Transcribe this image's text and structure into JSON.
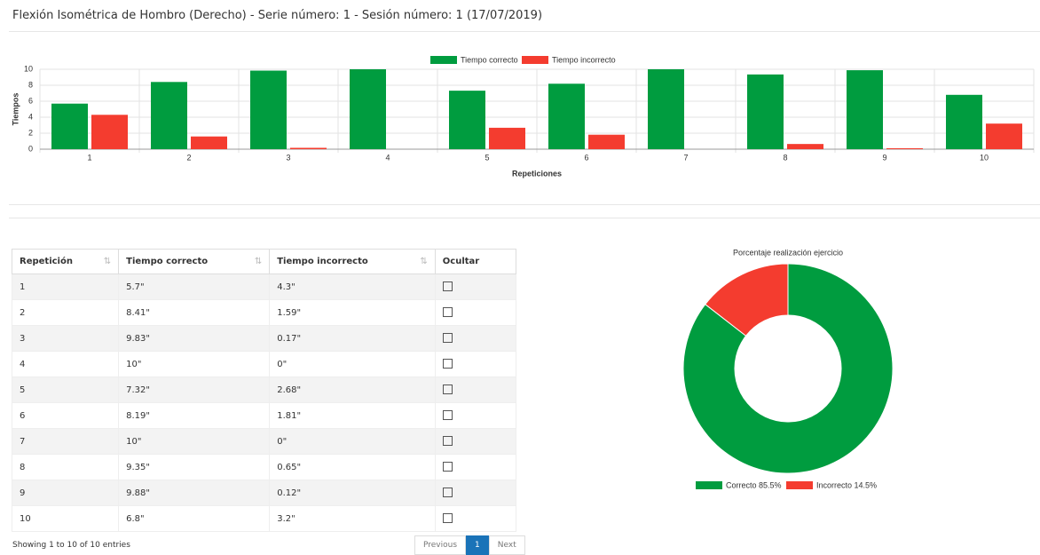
{
  "header": {
    "title": "Flexión Isométrica de Hombro (Derecho) - Serie número: 1 - Sesión número: 1 (17/07/2019)"
  },
  "chart_data": [
    {
      "type": "bar",
      "categories": [
        "1",
        "2",
        "3",
        "4",
        "5",
        "6",
        "7",
        "8",
        "9",
        "10"
      ],
      "series": [
        {
          "name": "Tiempo correcto",
          "color": "#009c3f",
          "values": [
            5.7,
            8.41,
            9.83,
            10,
            7.32,
            8.19,
            10,
            9.35,
            9.88,
            6.8
          ]
        },
        {
          "name": "Tiempo incorrecto",
          "color": "#f43c2f",
          "values": [
            4.3,
            1.59,
            0.17,
            0,
            2.68,
            1.81,
            0,
            0.65,
            0.12,
            3.2
          ]
        }
      ],
      "ylim": [
        0,
        10
      ],
      "yticks": [
        0,
        2,
        4,
        6,
        8,
        10
      ],
      "xlabel": "Repeticiones",
      "ylabel": "Tiempos",
      "grid": true
    },
    {
      "type": "doughnut",
      "title": "Porcentaje realización ejercicio",
      "categories": [
        "Correcto 85.5%",
        "Incorrecto 14.5%"
      ],
      "values": [
        85.5,
        14.5
      ],
      "colors": [
        "#009c3f",
        "#f43c2f"
      ]
    }
  ],
  "table": {
    "headers": [
      "Repetición",
      "Tiempo correcto",
      "Tiempo incorrecto",
      "Ocultar"
    ],
    "rows": [
      [
        "1",
        "5.7\"",
        "4.3\""
      ],
      [
        "2",
        "8.41\"",
        "1.59\""
      ],
      [
        "3",
        "9.83\"",
        "0.17\""
      ],
      [
        "4",
        "10\"",
        "0\""
      ],
      [
        "5",
        "7.32\"",
        "2.68\""
      ],
      [
        "6",
        "8.19\"",
        "1.81\""
      ],
      [
        "7",
        "10\"",
        "0\""
      ],
      [
        "8",
        "9.35\"",
        "0.65\""
      ],
      [
        "9",
        "9.88\"",
        "0.12\""
      ],
      [
        "10",
        "6.8\"",
        "3.2\""
      ]
    ],
    "info": "Showing 1 to 10 of 10 entries"
  },
  "pagination": [
    "Previous",
    "1",
    "Next"
  ]
}
